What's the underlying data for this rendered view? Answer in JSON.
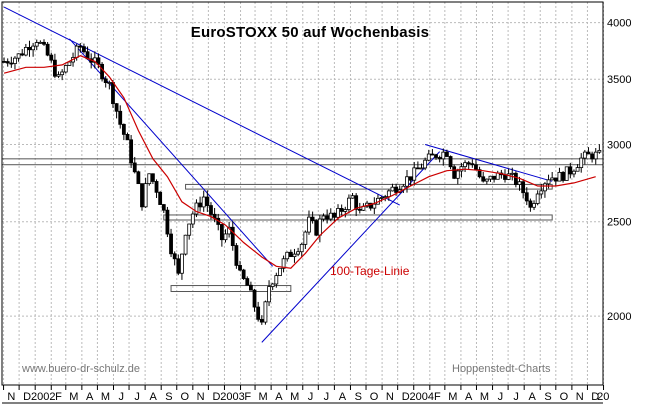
{
  "chart_data": {
    "type": "candlestick",
    "title": "EuroSTOXX 50 auf Wochenbasis",
    "y_scale": "log",
    "ylim": [
      1700,
      4200
    ],
    "y_ticks": [
      2000,
      2500,
      3000,
      3500,
      4000
    ],
    "x_range": [
      "2001-10-29",
      "2004-12-31"
    ],
    "x_tick_labels": [
      "N",
      "D",
      "2002",
      "F",
      "M",
      "A",
      "M",
      "J",
      "J",
      "A",
      "S",
      "O",
      "N",
      "D",
      "2003",
      "F",
      "M",
      "A",
      "M",
      "J",
      "J",
      "A",
      "S",
      "O",
      "N",
      "D",
      "2004",
      "F",
      "M",
      "A",
      "M",
      "J",
      "J",
      "A",
      "S",
      "O",
      "N",
      "D",
      "20"
    ],
    "grid": true,
    "annotation": "100-Tage-Linie",
    "footer_left": "www.buero-dr-schulz.de",
    "footer_right": "Hoppenstedt-Charts",
    "colors": {
      "price": "#000000",
      "ma": "#cc0000",
      "trendline": "#0000cc",
      "support": "#555555",
      "grid": "#bbbbbb"
    },
    "price_path": [
      [
        "2001-11-02",
        3650
      ],
      [
        "2001-11-30",
        3700
      ],
      [
        "2001-12-21",
        3800
      ],
      [
        "2002-01-04",
        3850
      ],
      [
        "2002-01-25",
        3700
      ],
      [
        "2002-02-15",
        3500
      ],
      [
        "2002-03-08",
        3650
      ],
      [
        "2002-03-29",
        3780
      ],
      [
        "2002-04-12",
        3700
      ],
      [
        "2002-05-03",
        3600
      ],
      [
        "2002-05-24",
        3450
      ],
      [
        "2002-06-14",
        3150
      ],
      [
        "2002-06-28",
        3000
      ],
      [
        "2002-07-12",
        2800
      ],
      [
        "2002-07-26",
        2620
      ],
      [
        "2002-08-09",
        2800
      ],
      [
        "2002-08-23",
        2700
      ],
      [
        "2002-09-06",
        2560
      ],
      [
        "2002-09-20",
        2350
      ],
      [
        "2002-10-04",
        2200
      ],
      [
        "2002-10-18",
        2450
      ],
      [
        "2002-11-01",
        2550
      ],
      [
        "2002-11-22",
        2650
      ],
      [
        "2002-12-06",
        2550
      ],
      [
        "2002-12-27",
        2400
      ],
      [
        "2003-01-10",
        2450
      ],
      [
        "2003-01-31",
        2200
      ],
      [
        "2003-02-14",
        2150
      ],
      [
        "2003-03-07",
        2000
      ],
      [
        "2003-03-14",
        1950
      ],
      [
        "2003-03-28",
        2150
      ],
      [
        "2003-04-18",
        2250
      ],
      [
        "2003-05-02",
        2300
      ],
      [
        "2003-05-30",
        2380
      ],
      [
        "2003-06-13",
        2500
      ],
      [
        "2003-06-27",
        2450
      ],
      [
        "2003-07-11",
        2550
      ],
      [
        "2003-08-01",
        2520
      ],
      [
        "2003-08-22",
        2600
      ],
      [
        "2003-09-05",
        2650
      ],
      [
        "2003-09-19",
        2550
      ],
      [
        "2003-10-10",
        2600
      ],
      [
        "2003-10-31",
        2650
      ],
      [
        "2003-11-21",
        2700
      ],
      [
        "2003-12-12",
        2750
      ],
      [
        "2004-01-02",
        2800
      ],
      [
        "2004-01-23",
        2880
      ],
      [
        "2004-02-13",
        2930
      ],
      [
        "2004-03-05",
        2950
      ],
      [
        "2004-03-19",
        2800
      ],
      [
        "2004-04-02",
        2850
      ],
      [
        "2004-04-23",
        2880
      ],
      [
        "2004-05-14",
        2730
      ],
      [
        "2004-06-04",
        2780
      ],
      [
        "2004-06-25",
        2800
      ],
      [
        "2004-07-16",
        2750
      ],
      [
        "2004-08-06",
        2650
      ],
      [
        "2004-08-13",
        2580
      ],
      [
        "2004-08-27",
        2700
      ],
      [
        "2004-09-17",
        2780
      ],
      [
        "2004-10-08",
        2780
      ],
      [
        "2004-10-29",
        2820
      ],
      [
        "2004-11-19",
        2900
      ],
      [
        "2004-12-10",
        2930
      ],
      [
        "2004-12-24",
        2920
      ]
    ],
    "ma_path": [
      [
        "2001-11-02",
        3550
      ],
      [
        "2001-12-14",
        3600
      ],
      [
        "2002-01-18",
        3600
      ],
      [
        "2002-02-22",
        3620
      ],
      [
        "2002-03-29",
        3700
      ],
      [
        "2002-04-26",
        3650
      ],
      [
        "2002-05-24",
        3520
      ],
      [
        "2002-06-21",
        3350
      ],
      [
        "2002-07-19",
        3100
      ],
      [
        "2002-08-16",
        2900
      ],
      [
        "2002-09-13",
        2780
      ],
      [
        "2002-10-11",
        2620
      ],
      [
        "2002-11-08",
        2560
      ],
      [
        "2002-12-06",
        2530
      ],
      [
        "2003-01-03",
        2480
      ],
      [
        "2003-02-07",
        2380
      ],
      [
        "2003-03-14",
        2300
      ],
      [
        "2003-04-11",
        2250
      ],
      [
        "2003-05-09",
        2240
      ],
      [
        "2003-06-06",
        2320
      ],
      [
        "2003-07-04",
        2420
      ],
      [
        "2003-08-08",
        2520
      ],
      [
        "2003-09-12",
        2580
      ],
      [
        "2003-10-17",
        2610
      ],
      [
        "2003-11-21",
        2660
      ],
      [
        "2003-12-26",
        2720
      ],
      [
        "2004-01-30",
        2780
      ],
      [
        "2004-03-05",
        2820
      ],
      [
        "2004-04-09",
        2830
      ],
      [
        "2004-05-14",
        2820
      ],
      [
        "2004-06-18",
        2800
      ],
      [
        "2004-07-23",
        2770
      ],
      [
        "2004-08-27",
        2720
      ],
      [
        "2004-10-01",
        2720
      ],
      [
        "2004-11-05",
        2740
      ],
      [
        "2004-12-17",
        2780
      ]
    ],
    "trendlines": [
      {
        "name": "long-downtrend",
        "from": [
          "2001-11-02",
          4150
        ],
        "to": [
          "2003-12-05",
          2600
        ]
      },
      {
        "name": "steep-downtrend",
        "from": [
          "2002-03-08",
          3850
        ],
        "to": [
          "2003-04-04",
          2250
        ]
      },
      {
        "name": "uptrend",
        "from": [
          "2003-03-14",
          1880
        ],
        "to": [
          "2004-02-20",
          2950
        ]
      },
      {
        "name": "upper-downtrend-2004",
        "from": [
          "2004-01-23",
          3000
        ],
        "to": [
          "2004-09-24",
          2750
        ]
      }
    ],
    "support_bands": [
      {
        "name": "support-2950",
        "from": "2001-10-29",
        "to": "2004-12-31",
        "low": 2860,
        "high": 2900
      },
      {
        "name": "support-2700",
        "from": "2002-10-18",
        "to": "2004-09-24",
        "low": 2700,
        "high": 2730
      },
      {
        "name": "support-2550",
        "from": "2002-09-06",
        "to": "2004-09-24",
        "low": 2510,
        "high": 2540
      },
      {
        "name": "support-2140",
        "from": "2002-09-20",
        "to": "2003-05-09",
        "low": 2120,
        "high": 2150
      }
    ]
  }
}
